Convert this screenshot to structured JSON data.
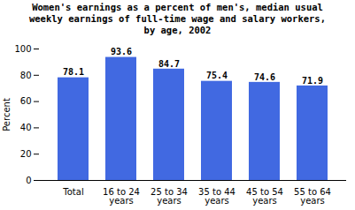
{
  "chart_data": {
    "type": "bar",
    "title": "Women's earnings as a percent of men's, median usual\nweekly earnings of full-time wage and salary workers,\nby age,  2002",
    "categories": [
      "Total",
      "16 to 24\nyears",
      "25 to 34\nyears",
      "35 to 44\nyears",
      "45 to 54\nyears",
      "55 to 64\nyears"
    ],
    "values": [
      78.1,
      93.6,
      84.7,
      75.4,
      74.6,
      71.9
    ],
    "color": "#4169E1",
    "ylabel": "Percent",
    "ylim": [
      0,
      100
    ],
    "yticks": [
      0,
      20,
      40,
      60,
      80,
      100
    ],
    "grid": false,
    "data_labels": true
  }
}
